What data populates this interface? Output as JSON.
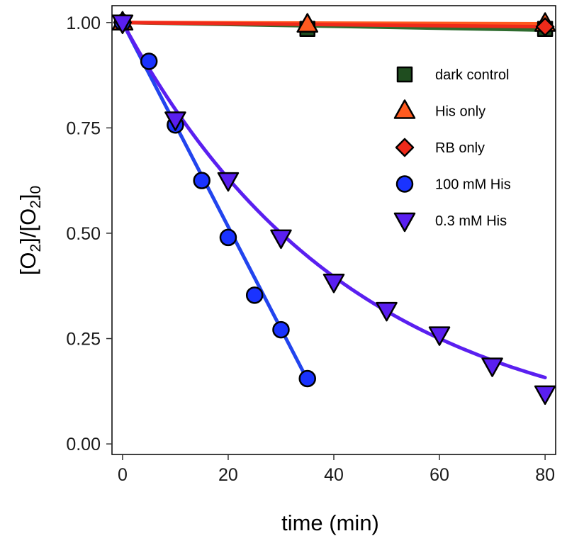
{
  "chart_data": {
    "type": "scatter",
    "xlabel": "time (min)",
    "ylabel_parts": [
      "[O",
      "2",
      "]/[O",
      "2",
      "]",
      "0"
    ],
    "xlim": [
      -2,
      82
    ],
    "ylim": [
      -0.025,
      1.04
    ],
    "xticks": [
      0,
      20,
      40,
      60,
      80
    ],
    "xtick_labels": [
      "0",
      "20",
      "40",
      "60",
      "80"
    ],
    "yticks": [
      0.0,
      0.25,
      0.5,
      0.75,
      1.0
    ],
    "ytick_labels": [
      "0.00",
      "0.25",
      "0.50",
      "0.75",
      "1.00"
    ],
    "legend_position": "right",
    "series": [
      {
        "name": "dark control",
        "marker": "square",
        "color": "#1f4d1f",
        "points": [
          [
            0,
            1.0
          ],
          [
            35,
            0.985
          ],
          [
            80,
            0.985
          ]
        ],
        "line": {
          "type": "straight",
          "from": [
            0,
            1.0
          ],
          "to": [
            80,
            0.982
          ],
          "color": "#2e6b2e"
        }
      },
      {
        "name": "His only",
        "marker": "triangle-up",
        "color": "#ff5a1f",
        "points": [
          [
            0,
            1.0
          ],
          [
            35,
            0.995
          ],
          [
            80,
            0.997
          ]
        ],
        "line": {
          "type": "straight",
          "from": [
            0,
            1.0
          ],
          "to": [
            80,
            0.997
          ],
          "color": "#ff5a1f"
        }
      },
      {
        "name": "RB only",
        "marker": "diamond",
        "color": "#ef2a1a",
        "points": [
          [
            0,
            1.0
          ],
          [
            80,
            0.99
          ]
        ],
        "line": {
          "type": "straight",
          "from": [
            0,
            1.0
          ],
          "to": [
            80,
            0.99
          ],
          "color": "#ef2a1a"
        }
      },
      {
        "name": "100 mM His",
        "marker": "circle",
        "color": "#1a33ff",
        "points": [
          [
            0,
            1.0
          ],
          [
            5,
            0.908
          ],
          [
            10,
            0.757
          ],
          [
            15,
            0.625
          ],
          [
            20,
            0.49
          ],
          [
            25,
            0.353
          ],
          [
            30,
            0.271
          ],
          [
            35,
            0.155
          ]
        ],
        "line": {
          "type": "straight",
          "from": [
            0,
            1.0
          ],
          "to": [
            35,
            0.152
          ],
          "color": "#2244ee"
        }
      },
      {
        "name": "0.3 mM His",
        "marker": "triangle-down",
        "color": "#5a1ff0",
        "points": [
          [
            0,
            1.0
          ],
          [
            10,
            0.77
          ],
          [
            20,
            0.626
          ],
          [
            30,
            0.49
          ],
          [
            40,
            0.385
          ],
          [
            50,
            0.318
          ],
          [
            60,
            0.26
          ],
          [
            70,
            0.186
          ],
          [
            80,
            0.12
          ]
        ],
        "line": {
          "type": "exponential",
          "k": 0.0231,
          "x_range": [
            0,
            80
          ],
          "color": "#5a1ff0"
        }
      }
    ]
  }
}
